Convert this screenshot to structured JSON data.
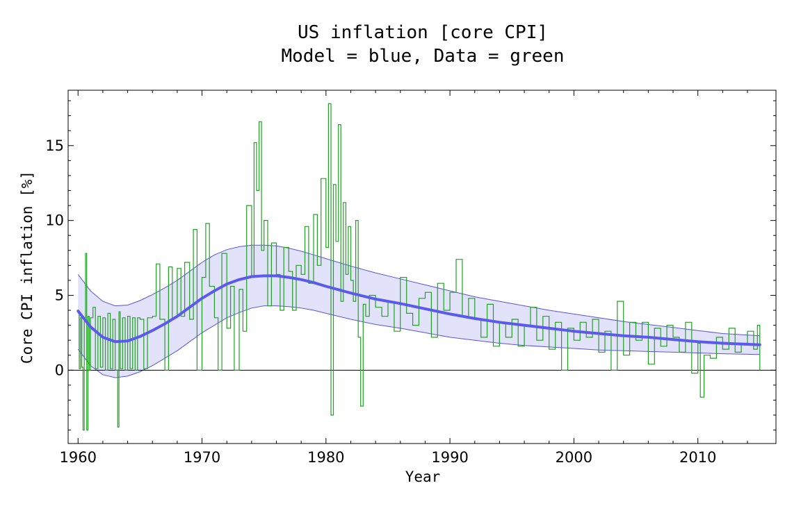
{
  "chart_data": {
    "type": "line",
    "title_line1": "US inflation [core CPI]",
    "title_line2": "Model = blue, Data = green",
    "xlabel": "Year",
    "ylabel": "Core CPI inflation [%]",
    "xlim": [
      1959.2,
      2016.3
    ],
    "ylim": [
      -4.9,
      18.7
    ],
    "x_ticks": [
      1960,
      1970,
      1980,
      1990,
      2000,
      2010
    ],
    "y_ticks": [
      0,
      5,
      10,
      15
    ],
    "zero_line": true,
    "grid": false,
    "colors": {
      "model": "#5a5aee",
      "band": "#e2e2fa",
      "band_edge": "#5555dd",
      "data": "#22a022"
    },
    "model": {
      "name": "Model",
      "x": [
        1960,
        1961,
        1962,
        1963,
        1964,
        1965,
        1966,
        1967,
        1968,
        1969,
        1970,
        1971,
        1972,
        1973,
        1974,
        1975,
        1976,
        1977,
        1978,
        1979,
        1980,
        1982,
        1984,
        1986,
        1988,
        1990,
        1992,
        1994,
        1996,
        1998,
        2000,
        2002,
        2004,
        2006,
        2008,
        2010,
        2012,
        2015
      ],
      "y": [
        3.95,
        2.9,
        2.2,
        1.9,
        1.95,
        2.25,
        2.65,
        3.1,
        3.6,
        4.2,
        4.8,
        5.3,
        5.75,
        6.05,
        6.25,
        6.3,
        6.3,
        6.2,
        6.05,
        5.85,
        5.6,
        5.15,
        4.75,
        4.45,
        4.1,
        3.75,
        3.45,
        3.2,
        3.0,
        2.8,
        2.6,
        2.45,
        2.3,
        2.2,
        2.05,
        1.9,
        1.8,
        1.7
      ],
      "upper": [
        6.4,
        5.3,
        4.6,
        4.3,
        4.35,
        4.65,
        5.05,
        5.5,
        6.0,
        6.6,
        7.2,
        7.7,
        8.05,
        8.25,
        8.35,
        8.35,
        8.3,
        8.15,
        7.95,
        7.7,
        7.45,
        6.95,
        6.5,
        6.1,
        5.7,
        5.3,
        4.9,
        4.6,
        4.3,
        4.0,
        3.75,
        3.5,
        3.25,
        3.05,
        2.85,
        2.65,
        2.45,
        2.3
      ],
      "lower": [
        1.4,
        0.3,
        -0.3,
        -0.5,
        -0.4,
        -0.1,
        0.3,
        0.8,
        1.3,
        1.9,
        2.5,
        3.0,
        3.5,
        3.85,
        4.15,
        4.3,
        4.3,
        4.25,
        4.15,
        4.0,
        3.8,
        3.4,
        3.05,
        2.8,
        2.5,
        2.2,
        2.0,
        1.8,
        1.65,
        1.55,
        1.45,
        1.35,
        1.3,
        1.25,
        1.2,
        1.15,
        1.1,
        1.05
      ]
    },
    "data": {
      "name": "Data",
      "x": [
        1960.0,
        1960.1,
        1960.2,
        1960.3,
        1960.4,
        1960.5,
        1960.6,
        1960.7,
        1960.8,
        1960.9,
        1961.0,
        1961.2,
        1961.4,
        1961.6,
        1961.8,
        1962.0,
        1962.2,
        1962.4,
        1962.6,
        1962.8,
        1963.0,
        1963.2,
        1963.3,
        1963.4,
        1963.6,
        1963.8,
        1964.0,
        1964.2,
        1964.4,
        1964.6,
        1964.8,
        1965.0,
        1965.3,
        1965.6,
        1966.0,
        1966.3,
        1966.6,
        1967.0,
        1967.3,
        1967.6,
        1968.0,
        1968.3,
        1968.6,
        1969.0,
        1969.3,
        1969.6,
        1970.0,
        1970.3,
        1970.6,
        1971.0,
        1971.3,
        1971.6,
        1972.0,
        1972.3,
        1972.6,
        1973.0,
        1973.3,
        1973.6,
        1974.0,
        1974.2,
        1974.4,
        1974.6,
        1974.8,
        1975.0,
        1975.3,
        1975.6,
        1976.0,
        1976.3,
        1976.6,
        1977.0,
        1977.3,
        1977.6,
        1978.0,
        1978.3,
        1978.6,
        1979.0,
        1979.3,
        1979.6,
        1980.0,
        1980.2,
        1980.4,
        1980.6,
        1980.8,
        1981.0,
        1981.2,
        1981.4,
        1981.6,
        1981.8,
        1982.0,
        1982.2,
        1982.4,
        1982.6,
        1982.8,
        1983.0,
        1983.2,
        1983.5,
        1984.0,
        1984.5,
        1985.0,
        1985.5,
        1986.0,
        1986.5,
        1987.0,
        1987.5,
        1988.0,
        1988.5,
        1989.0,
        1989.5,
        1990.0,
        1990.5,
        1991.0,
        1991.5,
        1992.0,
        1992.5,
        1993.0,
        1993.5,
        1994.0,
        1994.5,
        1995.0,
        1995.5,
        1996.0,
        1996.5,
        1997.0,
        1997.5,
        1998.0,
        1998.5,
        1999.0,
        1999.5,
        2000.0,
        2000.5,
        2001.0,
        2001.5,
        2002.0,
        2002.5,
        2003.0,
        2003.5,
        2004.0,
        2004.5,
        2005.0,
        2005.5,
        2006.0,
        2006.5,
        2007.0,
        2007.5,
        2008.0,
        2008.5,
        2009.0,
        2009.5,
        2010.0,
        2010.2,
        2010.5,
        2011.0,
        2011.5,
        2012.0,
        2012.5,
        2013.0,
        2013.5,
        2014.0,
        2014.5,
        2014.8,
        2015.0
      ],
      "y": [
        3.8,
        0.1,
        3.5,
        0.2,
        -4.0,
        3.5,
        7.8,
        -4.0,
        3.6,
        0.0,
        3.5,
        4.2,
        0.1,
        3.6,
        0.2,
        3.5,
        0.0,
        3.8,
        0.1,
        3.4,
        0.0,
        -3.8,
        3.9,
        0.1,
        3.5,
        0.0,
        3.6,
        0.1,
        3.5,
        0.0,
        3.5,
        3.4,
        0.1,
        3.5,
        3.6,
        7.1,
        3.4,
        0.0,
        6.9,
        3.5,
        6.8,
        3.6,
        7.2,
        3.4,
        9.4,
        0.0,
        6.2,
        9.8,
        5.6,
        3.5,
        0.0,
        7.8,
        2.8,
        5.6,
        0.0,
        5.4,
        2.6,
        11.0,
        6.2,
        15.2,
        12.0,
        16.6,
        8.0,
        10.0,
        4.3,
        8.5,
        6.4,
        4.0,
        8.2,
        6.6,
        4.0,
        7.0,
        6.4,
        9.6,
        5.8,
        10.4,
        7.0,
        12.8,
        8.2,
        17.8,
        -3.0,
        12.4,
        8.6,
        16.4,
        4.6,
        11.2,
        6.4,
        9.6,
        6.0,
        4.6,
        10.0,
        2.2,
        -2.4,
        4.4,
        3.6,
        5.0,
        4.2,
        3.6,
        4.6,
        2.6,
        6.2,
        3.8,
        3.0,
        4.8,
        5.2,
        2.2,
        5.8,
        4.0,
        5.2,
        7.4,
        3.6,
        4.8,
        3.4,
        2.2,
        4.4,
        1.6,
        3.2,
        2.2,
        3.4,
        1.6,
        3.0,
        4.2,
        2.0,
        3.6,
        1.4,
        3.2,
        0.0,
        2.8,
        2.0,
        3.2,
        2.2,
        3.4,
        1.2,
        2.6,
        0.0,
        4.6,
        1.0,
        3.2,
        2.0,
        3.2,
        0.4,
        2.8,
        1.6,
        3.0,
        2.2,
        1.2,
        3.2,
        -0.2,
        1.8,
        -1.8,
        1.0,
        0.8,
        2.2,
        1.4,
        2.8,
        1.2,
        1.8,
        2.6,
        1.4,
        3.0,
        0.0
      ]
    }
  }
}
